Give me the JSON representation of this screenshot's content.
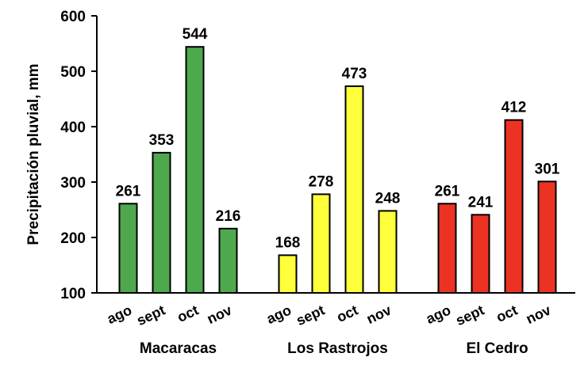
{
  "chart_data": {
    "type": "bar",
    "ylabel": "Precipitación pluvial, mm",
    "xlabel": "",
    "title": "",
    "ylim": [
      100,
      600
    ],
    "yticks": [
      100,
      200,
      300,
      400,
      500,
      600
    ],
    "grid": false,
    "legend": "none",
    "groups": [
      {
        "name": "Macaracas",
        "color": "#4ea94e",
        "categories": [
          "ago",
          "sept",
          "oct",
          "nov"
        ],
        "values": [
          261,
          353,
          544,
          216
        ]
      },
      {
        "name": "Los Rastrojos",
        "color": "#ffff3c",
        "categories": [
          "ago",
          "sept",
          "oct",
          "nov"
        ],
        "values": [
          168,
          278,
          473,
          248
        ]
      },
      {
        "name": "El Cedro",
        "color": "#ec3323",
        "categories": [
          "ago",
          "sept",
          "oct",
          "nov"
        ],
        "values": [
          261,
          241,
          412,
          301
        ]
      }
    ]
  }
}
